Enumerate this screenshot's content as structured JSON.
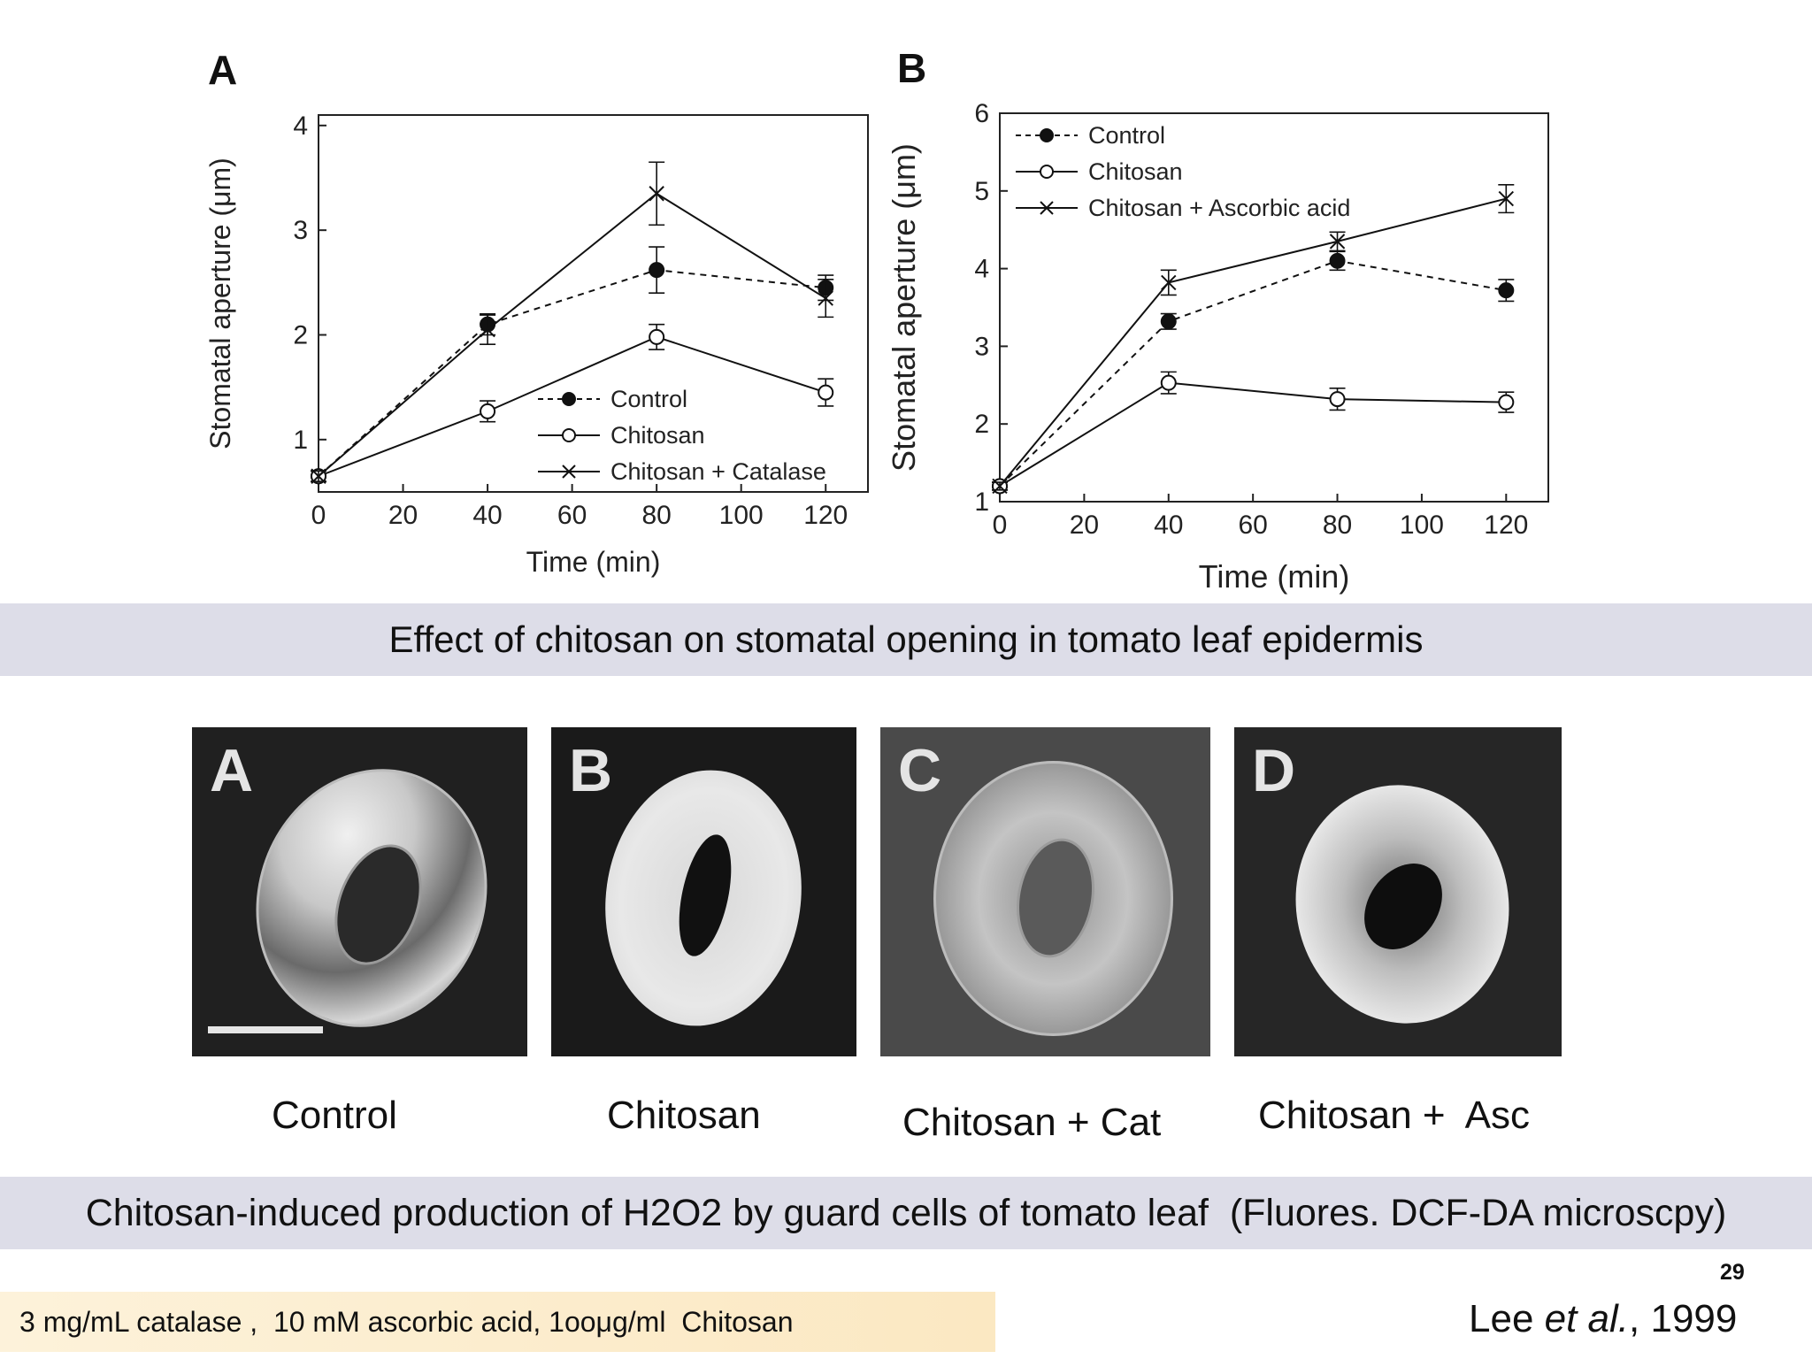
{
  "figure_top": {
    "panel_a_letter": "A",
    "panel_b_letter": "B",
    "caption": "Effect of chitosan on stomatal opening in tomato leaf epidermis"
  },
  "figure_bottom": {
    "panels": [
      {
        "letter": "A",
        "label": "Control"
      },
      {
        "letter": "B",
        "label": "Chitosan"
      },
      {
        "letter": "C",
        "label": "Chitosan + Cat"
      },
      {
        "letter": "D",
        "label": "Chitosan +  Asc"
      }
    ],
    "caption": "Chitosan-induced production of H2O2 by guard cells of tomato leaf  (Fluores. DCF-DA microscpy)"
  },
  "footer": {
    "note": "3 mg/mL catalase ,  10 mM ascorbic acid, 1ooμg/ml  Chitosan",
    "page_number": "29",
    "citation_author": "Lee ",
    "citation_etal": "et al.",
    "citation_year": ", 1999"
  },
  "chart_data": [
    {
      "type": "line",
      "panel": "A",
      "xlabel": "Time (min)",
      "ylabel": "Stomatal aperture (μm)",
      "xlim": [
        0,
        130
      ],
      "ylim": [
        0.5,
        4.1
      ],
      "xticks": [
        0,
        20,
        40,
        60,
        80,
        100,
        120
      ],
      "yticks": [
        1,
        2,
        3,
        4
      ],
      "legend_position": "bottom-right",
      "grid": false,
      "series": [
        {
          "name": "Control",
          "marker": "filled-circle",
          "dash": true,
          "x": [
            0,
            40,
            80,
            120
          ],
          "y": [
            0.65,
            2.1,
            2.62,
            2.45
          ],
          "err": [
            0.05,
            0.1,
            0.22,
            0.12
          ]
        },
        {
          "name": "Chitosan",
          "marker": "open-circle",
          "dash": false,
          "x": [
            0,
            40,
            80,
            120
          ],
          "y": [
            0.65,
            1.27,
            1.98,
            1.45
          ],
          "err": [
            0.05,
            0.1,
            0.12,
            0.13
          ]
        },
        {
          "name": "Chitosan + Catalase",
          "marker": "x",
          "dash": false,
          "x": [
            0,
            40,
            80,
            120
          ],
          "y": [
            0.65,
            2.05,
            3.35,
            2.35
          ],
          "err": [
            0.05,
            0.14,
            0.3,
            0.18
          ]
        }
      ]
    },
    {
      "type": "line",
      "panel": "B",
      "xlabel": "Time (min)",
      "ylabel": "Stomatal aperture (μm)",
      "xlim": [
        0,
        130
      ],
      "ylim": [
        1,
        6
      ],
      "xticks": [
        0,
        20,
        40,
        60,
        80,
        100,
        120
      ],
      "yticks": [
        1,
        2,
        3,
        4,
        5,
        6
      ],
      "legend_position": "top-left",
      "grid": false,
      "series": [
        {
          "name": "Control",
          "marker": "filled-circle",
          "dash": true,
          "x": [
            0,
            40,
            80,
            120
          ],
          "y": [
            1.2,
            3.32,
            4.1,
            3.72
          ],
          "err": [
            0.05,
            0.1,
            0.12,
            0.14
          ]
        },
        {
          "name": "Chitosan",
          "marker": "open-circle",
          "dash": false,
          "x": [
            0,
            40,
            80,
            120
          ],
          "y": [
            1.2,
            2.53,
            2.32,
            2.28
          ],
          "err": [
            0.05,
            0.14,
            0.14,
            0.13
          ]
        },
        {
          "name": "Chitosan + Ascorbic acid",
          "marker": "x",
          "dash": false,
          "x": [
            0,
            40,
            80,
            120
          ],
          "y": [
            1.2,
            3.82,
            4.35,
            4.9
          ],
          "err": [
            0.05,
            0.16,
            0.12,
            0.18
          ]
        }
      ]
    }
  ]
}
